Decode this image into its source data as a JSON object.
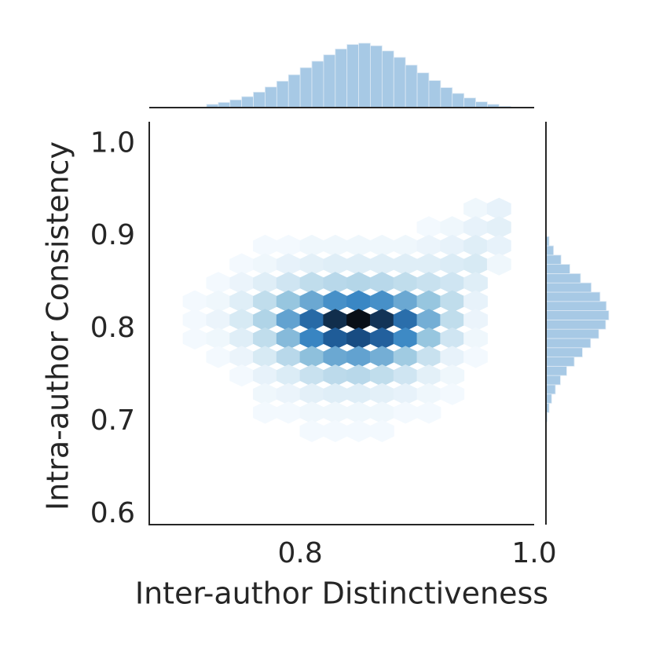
{
  "chart_data": {
    "type": "hexbin",
    "xlabel": "Inter-author Distinctiveness",
    "ylabel": "Intra-author Consistency",
    "xlim": [
      0.671,
      1.0
    ],
    "ylim": [
      0.589,
      1.024
    ],
    "xticks": [
      0.8,
      {
        "value": 1.0,
        "label": "1.0"
      }
    ],
    "yticks": [
      0.6,
      0.7,
      0.8,
      0.9,
      {
        "value": 1.0,
        "label": "1.0"
      }
    ],
    "hexbin": {
      "x": [
        0.71,
        0.73,
        0.75,
        0.77,
        0.79,
        0.81,
        0.83,
        0.85,
        0.87,
        0.89,
        0.91,
        0.93,
        0.95,
        0.97
      ],
      "y": [
        0.93,
        0.91,
        0.89,
        0.87,
        0.85,
        0.83,
        0.81,
        0.79,
        0.77,
        0.75,
        0.73,
        0.71,
        0.69
      ],
      "counts": [
        [
          0,
          0,
          0,
          0,
          0,
          0,
          0,
          0,
          0,
          0,
          0,
          0,
          2,
          4
        ],
        [
          0,
          0,
          0,
          0,
          0,
          0,
          0,
          0,
          0,
          0,
          1,
          2,
          4,
          5
        ],
        [
          0,
          0,
          0,
          1,
          1,
          2,
          2,
          2,
          2,
          2,
          3,
          4,
          6,
          4
        ],
        [
          0,
          0,
          1,
          2,
          4,
          5,
          6,
          6,
          6,
          6,
          6,
          7,
          8,
          2
        ],
        [
          0,
          1,
          3,
          6,
          10,
          14,
          16,
          17,
          16,
          14,
          12,
          10,
          6,
          0
        ],
        [
          1,
          2,
          6,
          14,
          24,
          34,
          42,
          45,
          42,
          34,
          24,
          14,
          4,
          0
        ],
        [
          1,
          3,
          8,
          18,
          36,
          58,
          80,
          90,
          78,
          56,
          32,
          14,
          3,
          0
        ],
        [
          1,
          2,
          6,
          14,
          28,
          46,
          64,
          70,
          62,
          44,
          24,
          10,
          2,
          0
        ],
        [
          0,
          1,
          3,
          8,
          16,
          26,
          34,
          36,
          32,
          22,
          12,
          4,
          1,
          0
        ],
        [
          0,
          0,
          1,
          4,
          7,
          12,
          15,
          16,
          14,
          10,
          5,
          2,
          0,
          0
        ],
        [
          0,
          0,
          0,
          2,
          3,
          5,
          6,
          6,
          5,
          4,
          2,
          1,
          0,
          0
        ],
        [
          0,
          0,
          0,
          1,
          1,
          2,
          2,
          2,
          2,
          1,
          1,
          0,
          0,
          0
        ],
        [
          0,
          0,
          0,
          0,
          0,
          1,
          1,
          1,
          1,
          0,
          0,
          0,
          0,
          0
        ]
      ],
      "colors": [
        "#f7fbff",
        "#9ecae1",
        "#3a87c4",
        "#1a5490",
        "#0a0f16"
      ]
    },
    "x_hist": {
      "bins": [
        0.72,
        0.73,
        0.74,
        0.75,
        0.76,
        0.77,
        0.78,
        0.79,
        0.8,
        0.81,
        0.82,
        0.83,
        0.84,
        0.85,
        0.86,
        0.87,
        0.88,
        0.89,
        0.9,
        0.91,
        0.92,
        0.93,
        0.94,
        0.95,
        0.96,
        0.97,
        0.98
      ],
      "counts": [
        5,
        8,
        12,
        17,
        24,
        32,
        41,
        51,
        62,
        72,
        82,
        91,
        98,
        100,
        96,
        88,
        78,
        66,
        54,
        42,
        31,
        22,
        15,
        9,
        5,
        2
      ],
      "color": "#a7c9e5"
    },
    "y_hist": {
      "bins": [
        0.7,
        0.71,
        0.72,
        0.73,
        0.74,
        0.75,
        0.76,
        0.77,
        0.78,
        0.79,
        0.8,
        0.81,
        0.82,
        0.83,
        0.84,
        0.85,
        0.86,
        0.87,
        0.88,
        0.89,
        0.9
      ],
      "counts": [
        2,
        5,
        9,
        15,
        23,
        33,
        45,
        58,
        71,
        84,
        95,
        100,
        96,
        86,
        72,
        55,
        38,
        24,
        12,
        5
      ],
      "color": "#a7c9e5"
    }
  }
}
